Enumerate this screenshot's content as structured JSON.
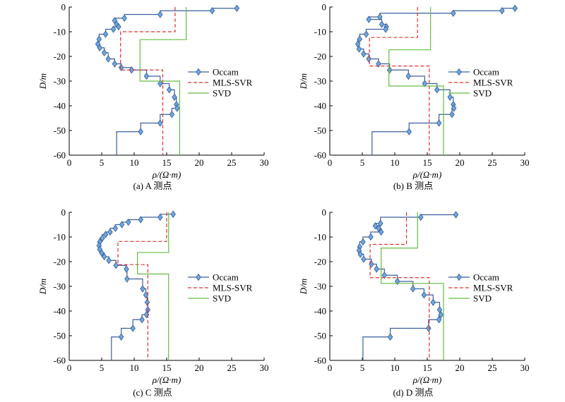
{
  "colors": {
    "occam": "#3a5f9e",
    "occam_marker": "#6fa8dc",
    "mls": "#e03030",
    "svd": "#66bb44",
    "axis": "#000000"
  },
  "chart_data": [
    {
      "type": "line",
      "caption": "(a) A 测点",
      "xlabel": "ρ/(Ω·m)",
      "ylabel": "D/m",
      "xlim": [
        0,
        30
      ],
      "ylim": [
        -60,
        0
      ],
      "xticks": [
        "0",
        "5",
        "10",
        "15",
        "20",
        "25",
        "30"
      ],
      "yticks": [
        "0",
        "-10",
        "-20",
        "-30",
        "-40",
        "-50",
        "-60"
      ],
      "legend": [
        "Occam",
        "MLS-SVR",
        "SVD"
      ],
      "series": [
        {
          "name": "Occam",
          "style": "step-marker",
          "x": [
            25.8,
            22.0,
            14.0,
            8.5,
            7.0,
            7.3,
            7.6,
            6.8,
            5.6,
            4.6,
            4.4,
            4.7,
            5.4,
            6.0,
            7.0,
            8.0,
            9.6,
            11.9,
            14.0,
            15.4,
            16.2,
            16.5,
            16.6,
            15.8,
            14.0,
            11.0,
            7.3
          ],
          "y": [
            -0.5,
            -1.5,
            -3.0,
            -4.5,
            -5.5,
            -7.0,
            -8.0,
            -9.0,
            -11.0,
            -13.0,
            -15.0,
            -16.5,
            -18.5,
            -21.0,
            -23.0,
            -24.5,
            -25.5,
            -28.0,
            -31.0,
            -33.5,
            -36.5,
            -39.5,
            -41.0,
            -43.5,
            -47.0,
            -50.5,
            -60.0
          ]
        },
        {
          "name": "MLS-SVR",
          "style": "step-dashed",
          "x": [
            16.3,
            16.3,
            7.9,
            7.9,
            14.4,
            14.4
          ],
          "y": [
            0,
            -10.0,
            -10.0,
            -25.5,
            -25.5,
            -60.0
          ]
        },
        {
          "name": "SVD",
          "style": "step-solid",
          "x": [
            18.0,
            18.0,
            10.9,
            10.9,
            17.0,
            17.0
          ],
          "y": [
            0,
            -13.2,
            -13.2,
            -30.0,
            -30.0,
            -60.0
          ]
        }
      ]
    },
    {
      "type": "line",
      "caption": "(b) B 测点",
      "xlabel": "ρ/(Ω·m)",
      "ylabel": "D/m",
      "xlim": [
        0,
        30
      ],
      "ylim": [
        -60,
        0
      ],
      "xticks": [
        "0",
        "5",
        "10",
        "15",
        "20",
        "25",
        "30"
      ],
      "yticks": [
        "0",
        "-10",
        "-20",
        "-30",
        "-40",
        "-50",
        "-60"
      ],
      "legend": [
        "Occam",
        "MLS-SVR",
        "SVD"
      ],
      "series": [
        {
          "name": "Occam",
          "style": "step-marker",
          "x": [
            28.5,
            26.5,
            19.0,
            7.7,
            6.0,
            8.0,
            8.7,
            8.6,
            5.6,
            4.6,
            4.3,
            4.5,
            5.2,
            6.0,
            7.5,
            9.2,
            12.1,
            14.6,
            16.5,
            18.5,
            19.0,
            19.1,
            18.8,
            16.8,
            12.2,
            6.5
          ],
          "y": [
            -0.5,
            -1.5,
            -2.5,
            -4.0,
            -5.0,
            -7.0,
            -8.0,
            -9.0,
            -11.0,
            -13.0,
            -15.0,
            -17.0,
            -19.0,
            -21.0,
            -23.0,
            -25.5,
            -28.0,
            -31.0,
            -33.5,
            -36.5,
            -39.5,
            -41.0,
            -43.5,
            -47.0,
            -50.5,
            -60.0
          ]
        },
        {
          "name": "MLS-SVR",
          "style": "step-dashed",
          "x": [
            13.5,
            13.5,
            6.1,
            6.1,
            15.3,
            15.3
          ],
          "y": [
            0,
            -12.3,
            -12.3,
            -23.9,
            -23.9,
            -60.0
          ]
        },
        {
          "name": "SVD",
          "style": "step-solid",
          "x": [
            15.5,
            15.5,
            9.1,
            9.1,
            17.5,
            17.5
          ],
          "y": [
            0,
            -17.3,
            -17.3,
            -32.0,
            -32.0,
            -60.0
          ]
        }
      ]
    },
    {
      "type": "line",
      "caption": "(c) C 测点",
      "xlabel": "ρ/(Ω·m)",
      "ylabel": "D/m",
      "xlim": [
        0,
        30
      ],
      "ylim": [
        -60,
        0
      ],
      "xticks": [
        "0",
        "5",
        "10",
        "15",
        "20",
        "25",
        "30"
      ],
      "yticks": [
        "0",
        "-10",
        "-20",
        "-30",
        "-40",
        "-50",
        "-60"
      ],
      "legend": [
        "Occam",
        "MLS-SVR",
        "SVD"
      ],
      "series": [
        {
          "name": "Occam",
          "style": "step-marker",
          "x": [
            16.0,
            14.0,
            11.0,
            9.1,
            8.1,
            7.1,
            6.3,
            5.6,
            5.1,
            4.7,
            4.6,
            4.7,
            5.0,
            5.4,
            6.1,
            7.2,
            8.8,
            8.9,
            11.3,
            11.8,
            12.0,
            12.1,
            11.9,
            11.2,
            9.8,
            8.0,
            6.5
          ],
          "y": [
            -0.8,
            -2.0,
            -3.0,
            -4.0,
            -5.0,
            -6.5,
            -8.0,
            -9.0,
            -10.5,
            -12.0,
            -13.5,
            -15.0,
            -16.5,
            -18.0,
            -19.5,
            -21.5,
            -23.0,
            -27.0,
            -31.0,
            -33.5,
            -36.5,
            -39.5,
            -41.5,
            -43.5,
            -47.0,
            -50.5,
            -60.0
          ]
        },
        {
          "name": "MLS-SVR",
          "style": "step-dashed",
          "x": [
            15.0,
            15.0,
            7.5,
            7.5,
            12.1,
            12.1
          ],
          "y": [
            0,
            -11.8,
            -11.8,
            -21.2,
            -21.2,
            -60.0
          ]
        },
        {
          "name": "SVD",
          "style": "step-solid",
          "x": [
            15.3,
            15.3,
            10.5,
            10.5,
            15.3,
            15.3
          ],
          "y": [
            0,
            -16.3,
            -16.3,
            -25.0,
            -25.0,
            -60.0
          ]
        }
      ]
    },
    {
      "type": "line",
      "caption": "(d) D 测点",
      "xlabel": "ρ/(Ω·m)",
      "ylabel": "D/m",
      "xlim": [
        0,
        30
      ],
      "ylim": [
        -60,
        0
      ],
      "xticks": [
        "0",
        "5",
        "10",
        "15",
        "20",
        "25",
        "30"
      ],
      "yticks": [
        "0",
        "-10",
        "-20",
        "-30",
        "-40",
        "-50",
        "-60"
      ],
      "legend": [
        "Occam",
        "MLS-SVR",
        "SVD"
      ],
      "series": [
        {
          "name": "Occam",
          "style": "step-marker",
          "x": [
            19.4,
            14.0,
            7.8,
            7.0,
            7.5,
            7.9,
            6.3,
            5.1,
            4.6,
            4.5,
            4.7,
            5.2,
            6.4,
            7.2,
            8.4,
            10.4,
            12.8,
            14.5,
            15.9,
            16.9,
            17.1,
            16.8,
            15.2,
            9.3,
            5.1
          ],
          "y": [
            -1.0,
            -2.0,
            -4.5,
            -5.5,
            -6.5,
            -8.0,
            -10.0,
            -12.0,
            -14.0,
            -15.5,
            -17.0,
            -19.0,
            -21.0,
            -23.0,
            -25.5,
            -28.0,
            -31.0,
            -33.5,
            -36.5,
            -39.5,
            -41.5,
            -43.5,
            -47.0,
            -50.5,
            -60.0
          ]
        },
        {
          "name": "MLS-SVR",
          "style": "step-dashed",
          "x": [
            11.8,
            11.8,
            6.2,
            6.2,
            15.3,
            15.3
          ],
          "y": [
            0,
            -13.0,
            -13.0,
            -26.5,
            -26.5,
            -60.0
          ]
        },
        {
          "name": "SVD",
          "style": "step-solid",
          "x": [
            13.5,
            13.5,
            7.9,
            7.9,
            17.5,
            17.5
          ],
          "y": [
            0,
            -14.5,
            -14.5,
            -28.8,
            -28.8,
            -60.0
          ]
        }
      ]
    }
  ]
}
